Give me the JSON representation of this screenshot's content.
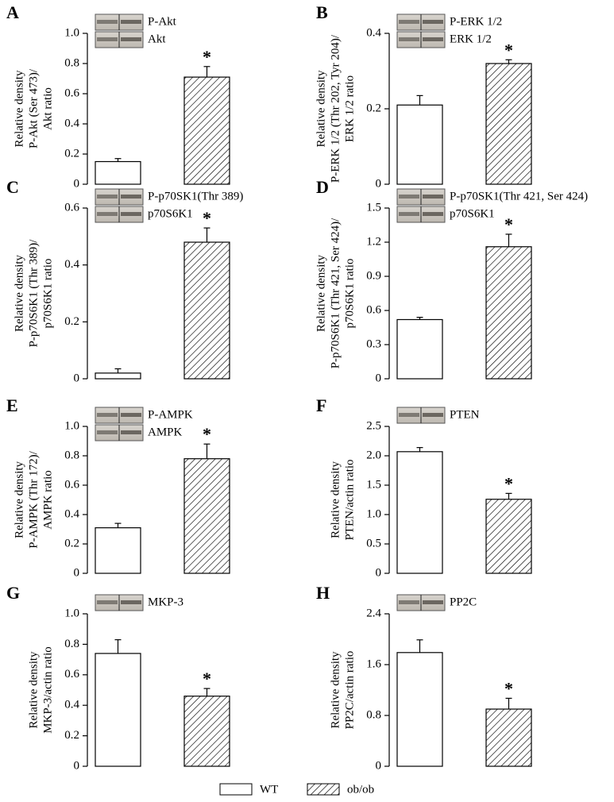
{
  "chart_data": [
    {
      "type": "bar",
      "panel_label": "A",
      "ylabel": [
        "Relative density",
        "P-Akt (Ser 473)/",
        "Akt ratio"
      ],
      "blot_labels": [
        "P-Akt",
        "Akt"
      ],
      "values": [
        0.15,
        0.71
      ],
      "errors": [
        0.02,
        0.07
      ],
      "significance": "*",
      "ylim": [
        0,
        1
      ],
      "yticks": [
        0,
        0.2,
        0.4,
        0.6,
        0.8,
        {
          "value": 1,
          "label": "1.0"
        }
      ]
    },
    {
      "type": "bar",
      "panel_label": "B",
      "ylabel": [
        "Relative density",
        "P-ERK 1/2 (Thr 202, Tyr 204)/",
        "ERK 1/2 ratio"
      ],
      "blot_labels": [
        "P-ERK 1/2",
        "ERK 1/2"
      ],
      "values": [
        0.21,
        0.32
      ],
      "errors": [
        0.025,
        0.01
      ],
      "significance": "*",
      "ylim": [
        0,
        0.4
      ],
      "yticks": [
        0,
        0.2,
        0.4
      ]
    },
    {
      "type": "bar",
      "panel_label": "C",
      "ylabel": [
        "Relative density",
        "P-p70S6K1 (Thr 389)/",
        "p70S6K1 ratio"
      ],
      "blot_labels": [
        "P-p70SK1(Thr 389)",
        "p70S6K1"
      ],
      "values": [
        0.02,
        0.48
      ],
      "errors": [
        0.015,
        0.05
      ],
      "significance": "*",
      "ylim": [
        0,
        0.6
      ],
      "yticks": [
        0,
        0.2,
        0.4,
        0.6
      ]
    },
    {
      "type": "bar",
      "panel_label": "D",
      "ylabel": [
        "Relative density",
        "P-p70S6K1 (Thr 421, Ser 424)/",
        "p70S6K1 ratio"
      ],
      "blot_labels": [
        "P-p70SK1(Thr 421, Ser 424)",
        "p70S6K1"
      ],
      "values": [
        0.52,
        1.16
      ],
      "errors": [
        0.02,
        0.11
      ],
      "significance": "*",
      "ylim": [
        0,
        1.5
      ],
      "yticks": [
        0,
        0.3,
        0.6,
        0.9,
        1.2,
        1.5
      ]
    },
    {
      "type": "bar",
      "panel_label": "E",
      "ylabel": [
        "Relative density",
        "P-AMPK (Thr 172)/",
        "AMPK ratio"
      ],
      "blot_labels": [
        "P-AMPK",
        "AMPK"
      ],
      "values": [
        0.31,
        0.78
      ],
      "errors": [
        0.03,
        0.1
      ],
      "significance": "*",
      "ylim": [
        0,
        1
      ],
      "yticks": [
        0,
        0.2,
        0.4,
        0.6,
        0.8,
        {
          "value": 1,
          "label": "1.0"
        }
      ]
    },
    {
      "type": "bar",
      "panel_label": "F",
      "ylabel": [
        "Relative density",
        "PTEN/actin ratio"
      ],
      "blot_labels": [
        "PTEN"
      ],
      "values": [
        2.07,
        1.26
      ],
      "errors": [
        0.07,
        0.1
      ],
      "significance": "*",
      "ylim": [
        0,
        2.5
      ],
      "yticks": [
        0,
        0.5,
        {
          "value": 1,
          "label": "1.0"
        },
        1.5,
        {
          "value": 2,
          "label": "2.0"
        },
        2.5
      ]
    },
    {
      "type": "bar",
      "panel_label": "G",
      "ylabel": [
        "Relative density",
        "MKP-3/actin ratio"
      ],
      "blot_labels": [
        "MKP-3"
      ],
      "values": [
        0.74,
        0.46
      ],
      "errors": [
        0.09,
        0.05
      ],
      "significance": "*",
      "ylim": [
        0,
        1
      ],
      "yticks": [
        0,
        0.2,
        0.4,
        0.6,
        0.8,
        {
          "value": 1,
          "label": "1.0"
        }
      ]
    },
    {
      "type": "bar",
      "panel_label": "H",
      "ylabel": [
        "Relative density",
        "PP2C/actin ratio"
      ],
      "blot_labels": [
        "PP2C"
      ],
      "values": [
        1.79,
        0.9
      ],
      "errors": [
        0.2,
        0.17
      ],
      "significance": "*",
      "ylim": [
        0,
        2.4
      ],
      "yticks": [
        0,
        0.8,
        1.6,
        2.4
      ]
    }
  ],
  "legend": [
    {
      "name": "WT",
      "fill": "white"
    },
    {
      "name": "ob/ob",
      "fill": "hatch"
    }
  ]
}
